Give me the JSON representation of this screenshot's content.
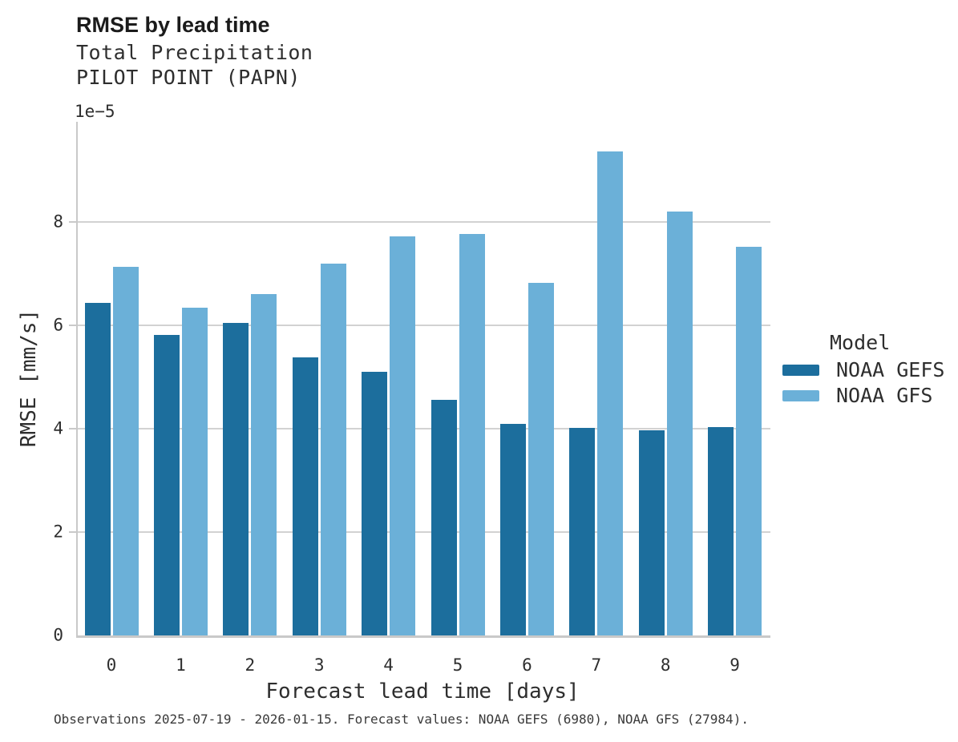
{
  "header": {
    "title": "RMSE by lead time",
    "subtitle_line1": "Total Precipitation",
    "subtitle_line2": "PILOT POINT (PAPN)"
  },
  "axes": {
    "offset_label": "1e−5",
    "ylabel": "RMSE [mm/s]",
    "xlabel": "Forecast lead time [days]"
  },
  "legend": {
    "title": "Model",
    "items": [
      {
        "label": "NOAA GEFS",
        "color": "#1C6E9D"
      },
      {
        "label": "NOAA GFS",
        "color": "#6BB0D8"
      }
    ]
  },
  "caption": "Observations 2025-07-19 - 2026-01-15. Forecast values: NOAA GEFS (6980), NOAA GFS (27984).",
  "chart_data": {
    "type": "bar",
    "title": "RMSE by lead time",
    "subtitle": "Total Precipitation PILOT POINT (PAPN)",
    "xlabel": "Forecast lead time [days]",
    "ylabel": "RMSE [mm/s]",
    "y_scale_factor": "1e-5",
    "categories": [
      "0",
      "1",
      "2",
      "3",
      "4",
      "5",
      "6",
      "7",
      "8",
      "9"
    ],
    "series": [
      {
        "name": "NOAA GEFS",
        "color": "#1C6E9D",
        "values": [
          6.43,
          5.82,
          6.05,
          5.38,
          5.1,
          4.56,
          4.1,
          4.02,
          3.97,
          4.04
        ]
      },
      {
        "name": "NOAA GFS",
        "color": "#6BB0D8",
        "values": [
          7.14,
          6.34,
          6.6,
          7.2,
          7.72,
          7.77,
          6.82,
          9.37,
          8.2,
          7.52
        ]
      }
    ],
    "yticks": [
      0,
      2,
      4,
      6,
      8
    ],
    "ylim": [
      0,
      9.94
    ],
    "grid": "horizontal",
    "legend_position": "right"
  }
}
